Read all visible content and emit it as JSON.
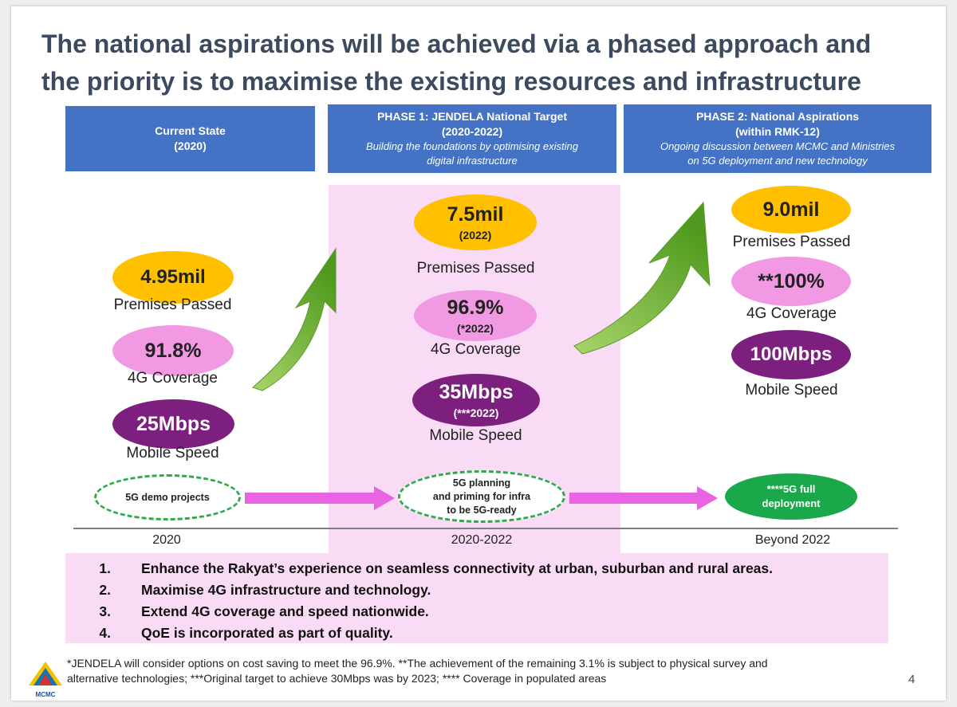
{
  "title": {
    "line1": "The national aspirations will be achieved via a phased approach and",
    "line2": "the priority is to maximise the existing resources and infrastructure"
  },
  "phases": [
    {
      "title": "Current State",
      "years": "(2020)",
      "desc1": "",
      "desc2": ""
    },
    {
      "title": "PHASE 1: JENDELA National Target",
      "years": "(2020-2022)",
      "desc1": "Building the foundations by optimising existing",
      "desc2": "digital infrastructure"
    },
    {
      "title": "PHASE 2: National Aspirations",
      "years": "(within RMK-12)",
      "desc1": "Ongoing discussion between MCMC and Ministries",
      "desc2": "on 5G deployment and new technology"
    }
  ],
  "current": {
    "premises_value": "4.95mil",
    "premises_label": "Premises Passed",
    "coverage_value": "91.8%",
    "coverage_label": "4G Coverage",
    "speed_value": "25Mbps",
    "speed_label": "Mobile Speed",
    "fiveg": "5G demo projects",
    "year": "2020"
  },
  "phase1": {
    "premises_value": "7.5mil",
    "premises_sub": "(2022)",
    "premises_label": "Premises Passed",
    "coverage_value": "96.9%",
    "coverage_sub": "(*2022)",
    "coverage_label": "4G Coverage",
    "speed_value": "35Mbps",
    "speed_sub": "(***2022)",
    "speed_label": "Mobile Speed",
    "fiveg_line1": "5G planning",
    "fiveg_line2": "and priming for infra",
    "fiveg_line3": "to be 5G-ready",
    "year": "2020-2022"
  },
  "phase2": {
    "premises_value": "9.0mil",
    "premises_label": "Premises Passed",
    "coverage_value": "**100%",
    "coverage_label": "4G Coverage",
    "speed_value": "100Mbps",
    "speed_label": "Mobile Speed",
    "fiveg_line1": "****5G full",
    "fiveg_line2": "deployment",
    "year": "Beyond 2022"
  },
  "priorities": [
    {
      "num": "1.",
      "text": "Enhance the Rakyat’s experience on seamless connectivity at urban, suburban and rural areas."
    },
    {
      "num": "2.",
      "text": "Maximise 4G infrastructure and technology."
    },
    {
      "num": "3.",
      "text": "Extend 4G coverage and speed nationwide."
    },
    {
      "num": "4.",
      "text": "QoE is incorporated as part of quality."
    }
  ],
  "footnote": {
    "line1": "*JENDELA will consider options on cost saving to meet the 96.9%. **The achievement of the remaining 3.1% is subject to physical survey and",
    "line2": "alternative technologies; ***Original target to achieve 30Mbps was by 2023; **** Coverage in populated areas"
  },
  "logo_text": "MCMC",
  "page_number": "4",
  "colors": {
    "title": "#3b4a5e",
    "phase_header": "#4472c4",
    "pink_band": "#f9dbf5",
    "yellow": "#ffc000",
    "pink": "#f199e3",
    "purple": "#7d1f7e",
    "green": "#1ba84a",
    "arrow_magenta": "#e964e3",
    "arrow_green": "#7cbb2e"
  }
}
